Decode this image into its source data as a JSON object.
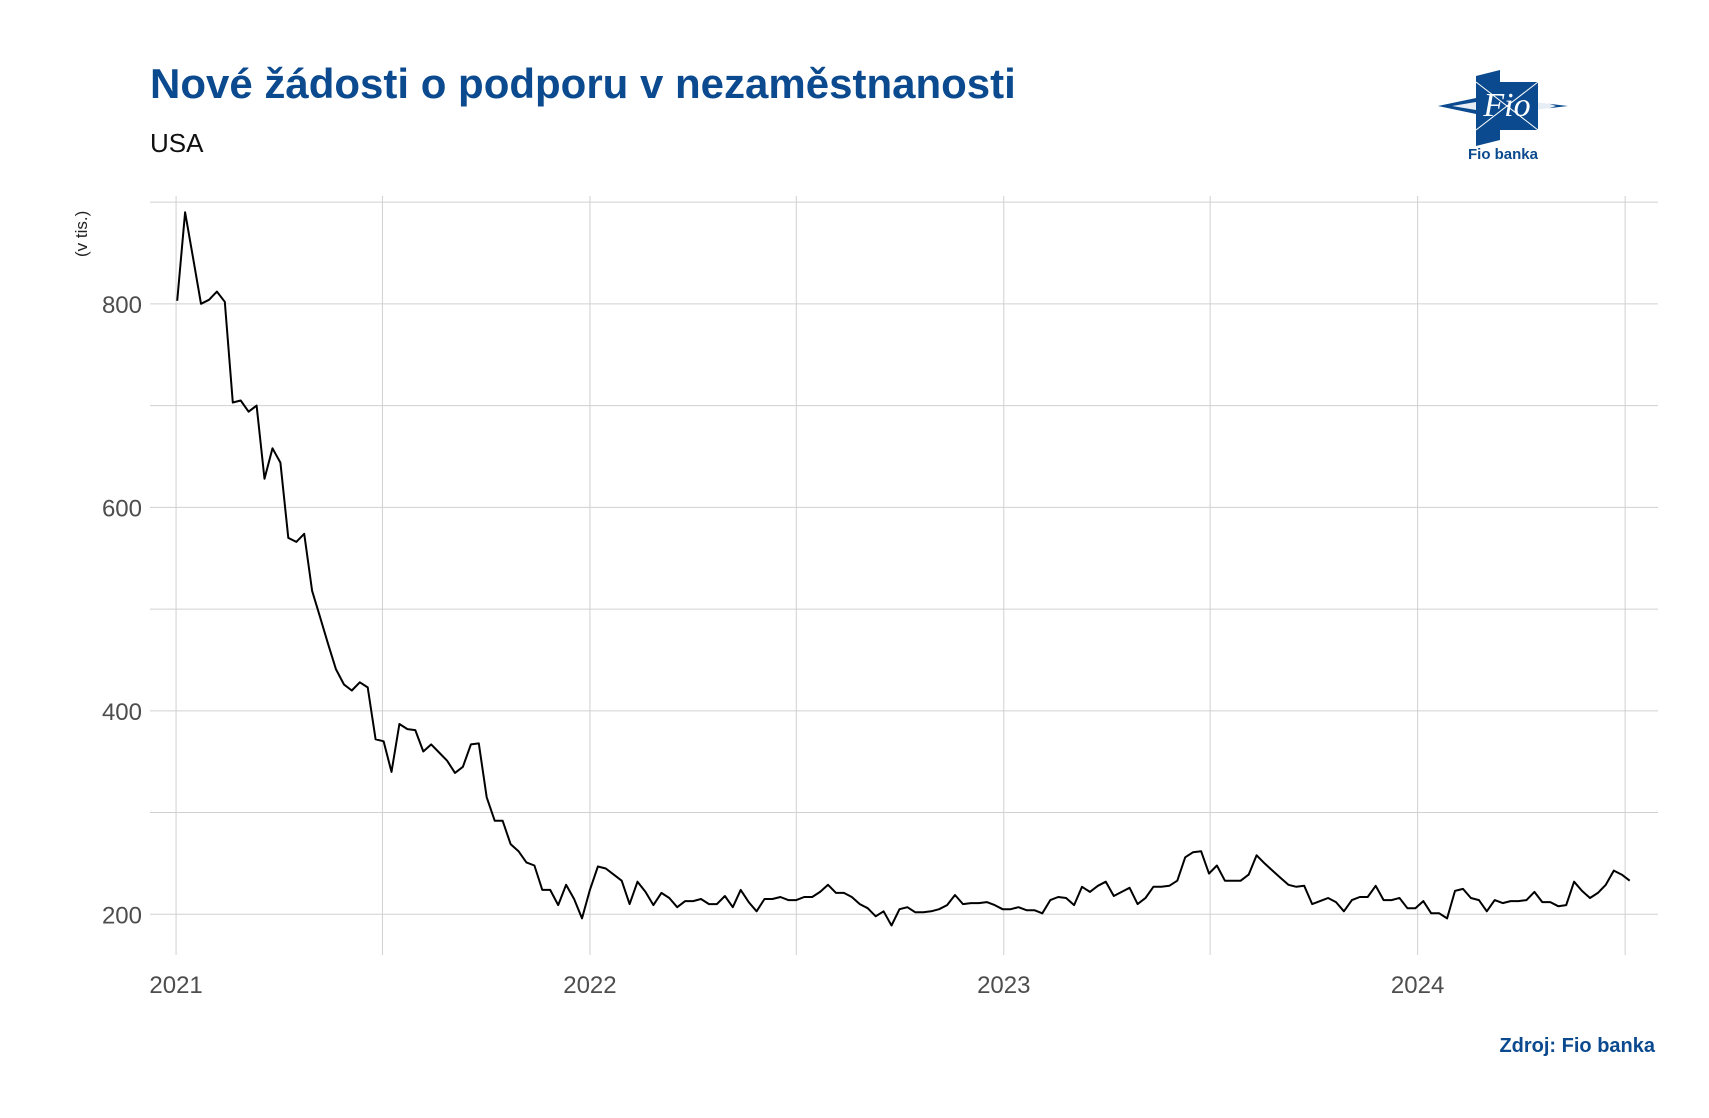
{
  "title": "Nové žádosti o podporu v nezaměstnanosti",
  "subtitle": "USA",
  "source": "Zdroj: Fio banka",
  "logo": {
    "icon": "fio-logo-icon",
    "mark_text": "Fio",
    "text": "Fio banka"
  },
  "colors": {
    "title": "#0b4a8e",
    "line": "#000000",
    "grid": "#d0d0d0",
    "logo": "#0b4a8e"
  },
  "chart_data": {
    "type": "line",
    "ylabel": "(v tis.)",
    "xlabel": "",
    "ylim": [
      160,
      906
    ],
    "xlim": [
      "2020-12-09",
      "2024-07-31"
    ],
    "y_ticks": [
      200,
      400,
      600,
      800
    ],
    "y_tick_labels": [
      "200",
      "400",
      "600",
      "800"
    ],
    "x_ticks": [
      "2021-01-01",
      "2022-01-01",
      "2023-01-01",
      "2024-01-01"
    ],
    "x_tick_labels": [
      "2021",
      "2022",
      "2023",
      "2024"
    ],
    "grid": true,
    "legend": "none",
    "series": [
      {
        "values": [
          [
            "2021-01-02",
            803
          ],
          [
            "2021-01-09",
            890
          ],
          [
            "2021-01-16",
            845
          ],
          [
            "2021-01-23",
            800
          ],
          [
            "2021-01-30",
            804
          ],
          [
            "2021-02-06",
            812
          ],
          [
            "2021-02-13",
            802
          ],
          [
            "2021-02-20",
            703
          ],
          [
            "2021-02-27",
            705
          ],
          [
            "2021-03-06",
            694
          ],
          [
            "2021-03-13",
            700
          ],
          [
            "2021-03-20",
            628
          ],
          [
            "2021-03-27",
            658
          ],
          [
            "2021-04-03",
            644
          ],
          [
            "2021-04-10",
            570
          ],
          [
            "2021-04-17",
            566
          ],
          [
            "2021-04-24",
            574
          ],
          [
            "2021-05-01",
            518
          ],
          [
            "2021-05-08",
            492
          ],
          [
            "2021-05-15",
            466
          ],
          [
            "2021-05-22",
            441
          ],
          [
            "2021-05-29",
            426
          ],
          [
            "2021-06-05",
            420
          ],
          [
            "2021-06-12",
            428
          ],
          [
            "2021-06-19",
            423
          ],
          [
            "2021-06-26",
            372
          ],
          [
            "2021-07-03",
            370
          ],
          [
            "2021-07-10",
            340
          ],
          [
            "2021-07-17",
            387
          ],
          [
            "2021-07-24",
            382
          ],
          [
            "2021-07-31",
            381
          ],
          [
            "2021-08-07",
            360
          ],
          [
            "2021-08-14",
            367
          ],
          [
            "2021-08-21",
            359
          ],
          [
            "2021-08-28",
            351
          ],
          [
            "2021-09-04",
            339
          ],
          [
            "2021-09-11",
            345
          ],
          [
            "2021-09-18",
            367
          ],
          [
            "2021-09-25",
            368
          ],
          [
            "2021-10-02",
            315
          ],
          [
            "2021-10-09",
            292
          ],
          [
            "2021-10-16",
            292
          ],
          [
            "2021-10-23",
            269
          ],
          [
            "2021-10-30",
            262
          ],
          [
            "2021-11-06",
            251
          ],
          [
            "2021-11-13",
            248
          ],
          [
            "2021-11-20",
            224
          ],
          [
            "2021-11-27",
            224
          ],
          [
            "2021-12-04",
            209
          ],
          [
            "2021-12-11",
            229
          ],
          [
            "2021-12-18",
            215
          ],
          [
            "2021-12-25",
            196
          ],
          [
            "2022-01-01",
            224
          ],
          [
            "2022-01-08",
            247
          ],
          [
            "2022-01-15",
            245
          ],
          [
            "2022-01-22",
            239
          ],
          [
            "2022-01-29",
            233
          ],
          [
            "2022-02-05",
            210
          ],
          [
            "2022-02-12",
            232
          ],
          [
            "2022-02-19",
            222
          ],
          [
            "2022-02-26",
            209
          ],
          [
            "2022-03-05",
            221
          ],
          [
            "2022-03-12",
            216
          ],
          [
            "2022-03-19",
            207
          ],
          [
            "2022-03-26",
            213
          ],
          [
            "2022-04-02",
            213
          ],
          [
            "2022-04-09",
            215
          ],
          [
            "2022-04-16",
            210
          ],
          [
            "2022-04-23",
            210
          ],
          [
            "2022-04-30",
            218
          ],
          [
            "2022-05-07",
            207
          ],
          [
            "2022-05-14",
            224
          ],
          [
            "2022-05-21",
            212
          ],
          [
            "2022-05-28",
            203
          ],
          [
            "2022-06-04",
            215
          ],
          [
            "2022-06-11",
            215
          ],
          [
            "2022-06-18",
            217
          ],
          [
            "2022-06-25",
            214
          ],
          [
            "2022-07-02",
            214
          ],
          [
            "2022-07-09",
            217
          ],
          [
            "2022-07-16",
            217
          ],
          [
            "2022-07-23",
            222
          ],
          [
            "2022-07-30",
            229
          ],
          [
            "2022-08-06",
            221
          ],
          [
            "2022-08-13",
            221
          ],
          [
            "2022-08-20",
            217
          ],
          [
            "2022-08-27",
            210
          ],
          [
            "2022-09-03",
            206
          ],
          [
            "2022-09-10",
            198
          ],
          [
            "2022-09-17",
            203
          ],
          [
            "2022-09-24",
            189
          ],
          [
            "2022-10-01",
            205
          ],
          [
            "2022-10-08",
            207
          ],
          [
            "2022-10-15",
            202
          ],
          [
            "2022-10-22",
            202
          ],
          [
            "2022-10-29",
            203
          ],
          [
            "2022-11-05",
            205
          ],
          [
            "2022-11-12",
            209
          ],
          [
            "2022-11-19",
            219
          ],
          [
            "2022-11-26",
            210
          ],
          [
            "2022-12-03",
            211
          ],
          [
            "2022-12-10",
            211
          ],
          [
            "2022-12-17",
            212
          ],
          [
            "2022-12-24",
            209
          ],
          [
            "2022-12-31",
            205
          ],
          [
            "2023-01-07",
            205
          ],
          [
            "2023-01-14",
            207
          ],
          [
            "2023-01-21",
            204
          ],
          [
            "2023-01-28",
            204
          ],
          [
            "2023-02-04",
            201
          ],
          [
            "2023-02-11",
            214
          ],
          [
            "2023-02-18",
            217
          ],
          [
            "2023-02-25",
            216
          ],
          [
            "2023-03-04",
            209
          ],
          [
            "2023-03-11",
            227
          ],
          [
            "2023-03-18",
            222
          ],
          [
            "2023-03-25",
            228
          ],
          [
            "2023-04-01",
            232
          ],
          [
            "2023-04-08",
            218
          ],
          [
            "2023-04-15",
            222
          ],
          [
            "2023-04-22",
            226
          ],
          [
            "2023-04-29",
            210
          ],
          [
            "2023-05-06",
            216
          ],
          [
            "2023-05-13",
            227
          ],
          [
            "2023-05-20",
            227
          ],
          [
            "2023-05-27",
            228
          ],
          [
            "2023-06-03",
            233
          ],
          [
            "2023-06-10",
            256
          ],
          [
            "2023-06-17",
            261
          ],
          [
            "2023-06-24",
            262
          ],
          [
            "2023-07-01",
            240
          ],
          [
            "2023-07-08",
            248
          ],
          [
            "2023-07-15",
            233
          ],
          [
            "2023-07-22",
            233
          ],
          [
            "2023-07-29",
            233
          ],
          [
            "2023-08-05",
            239
          ],
          [
            "2023-08-12",
            258
          ],
          [
            "2023-08-19",
            250
          ],
          [
            "2023-08-26",
            243
          ],
          [
            "2023-09-02",
            236
          ],
          [
            "2023-09-09",
            229
          ],
          [
            "2023-09-16",
            227
          ],
          [
            "2023-09-23",
            228
          ],
          [
            "2023-09-30",
            210
          ],
          [
            "2023-10-07",
            213
          ],
          [
            "2023-10-14",
            216
          ],
          [
            "2023-10-21",
            212
          ],
          [
            "2023-10-28",
            203
          ],
          [
            "2023-11-04",
            214
          ],
          [
            "2023-11-11",
            217
          ],
          [
            "2023-11-18",
            217
          ],
          [
            "2023-11-25",
            228
          ],
          [
            "2023-12-02",
            214
          ],
          [
            "2023-12-09",
            214
          ],
          [
            "2023-12-16",
            216
          ],
          [
            "2023-12-23",
            206
          ],
          [
            "2023-12-30",
            206
          ],
          [
            "2024-01-06",
            213
          ],
          [
            "2024-01-13",
            201
          ],
          [
            "2024-01-20",
            201
          ],
          [
            "2024-01-27",
            196
          ],
          [
            "2024-02-03",
            223
          ],
          [
            "2024-02-10",
            225
          ],
          [
            "2024-02-17",
            216
          ],
          [
            "2024-02-24",
            214
          ],
          [
            "2024-03-02",
            203
          ],
          [
            "2024-03-09",
            214
          ],
          [
            "2024-03-16",
            211
          ],
          [
            "2024-03-23",
            213
          ],
          [
            "2024-03-30",
            213
          ],
          [
            "2024-04-06",
            214
          ],
          [
            "2024-04-13",
            222
          ],
          [
            "2024-04-20",
            212
          ],
          [
            "2024-04-27",
            212
          ],
          [
            "2024-05-04",
            208
          ],
          [
            "2024-05-11",
            209
          ],
          [
            "2024-05-18",
            232
          ],
          [
            "2024-05-25",
            223
          ],
          [
            "2024-06-01",
            216
          ],
          [
            "2024-06-08",
            221
          ],
          [
            "2024-06-15",
            229
          ],
          [
            "2024-06-22",
            243
          ],
          [
            "2024-06-29",
            239
          ],
          [
            "2024-07-06",
            233
          ]
        ]
      }
    ]
  }
}
